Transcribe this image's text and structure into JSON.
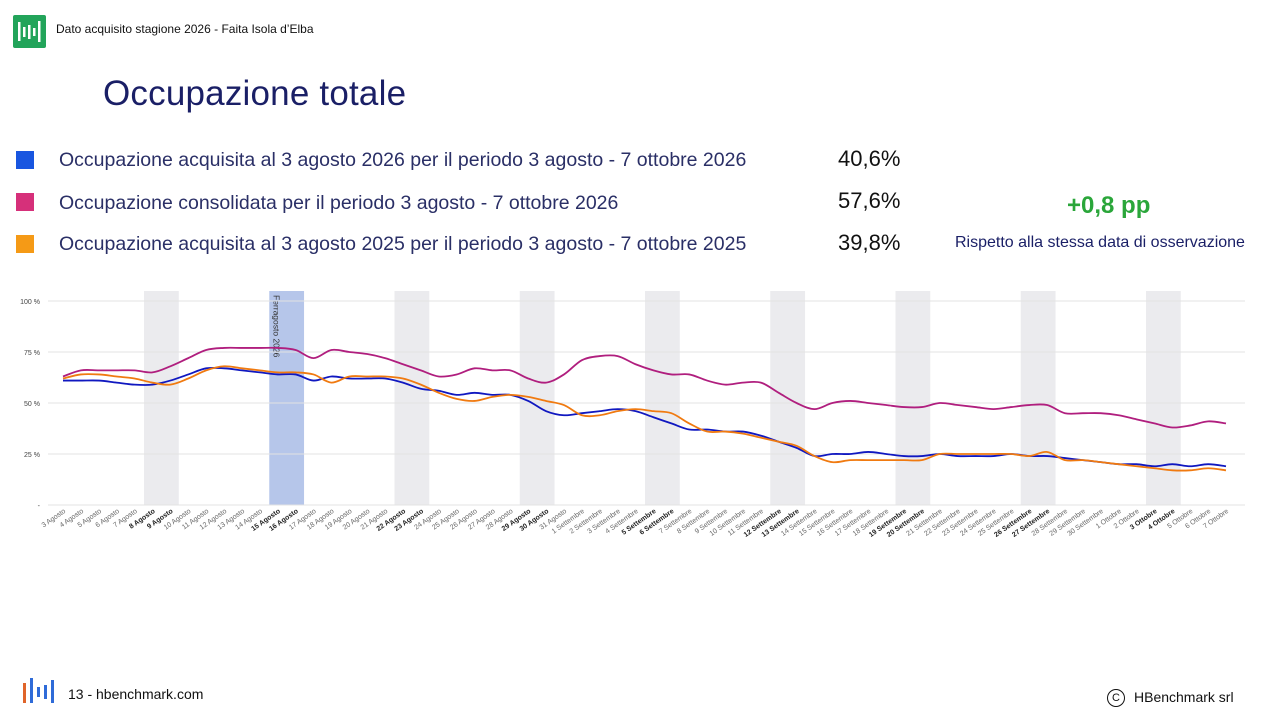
{
  "header": {
    "text": "Dato acquisito stagione 2026 - Faita Isola d’Elba"
  },
  "title": "Occupazione totale",
  "legend": [
    {
      "label": "Occupazione acquisita al 3 agosto 2026 per il periodo 3 agosto - 7 ottobre 2026",
      "value": "40,6%",
      "color": "#1956e0"
    },
    {
      "label": "Occupazione consolidata per il periodo 3 agosto - 7 ottobre 2026",
      "value": "57,6%",
      "color": "#d6307a"
    },
    {
      "label": "Occupazione acquisita al 3 agosto 2025 per il periodo 3 agosto - 7 ottobre 2025",
      "value": "39,8%",
      "color": "#f59a16"
    }
  ],
  "delta": {
    "value": "+0,8 pp",
    "note": "Rispetto alla stessa data di osservazione"
  },
  "footer": {
    "text": "13 - hbenchmark.com",
    "copyright_symbol": "C",
    "copyright": "HBenchmark srl"
  },
  "chart_data": {
    "type": "line",
    "yticks": [
      "100 %",
      "75 %",
      "50 %",
      "25 %",
      "-"
    ],
    "ylim": [
      0,
      100
    ],
    "x": [
      "3 Agosto",
      "4 Agosto",
      "5 Agosto",
      "6 Agosto",
      "7 Agosto",
      "8 Agosto",
      "9 Agosto",
      "10 Agosto",
      "11 Agosto",
      "12 Agosto",
      "13 Agosto",
      "14 Agosto",
      "15 Agosto",
      "16 Agosto",
      "17 Agosto",
      "18 Agosto",
      "19 Agosto",
      "20 Agosto",
      "21 Agosto",
      "22 Agosto",
      "23 Agosto",
      "24 Agosto",
      "25 Agosto",
      "26 Agosto",
      "27 Agosto",
      "28 Agosto",
      "29 Agosto",
      "30 Agosto",
      "31 Agosto",
      "1 Settembre",
      "2 Settembre",
      "3 Settembre",
      "4 Settembre",
      "5 Settembre",
      "6 Settembre",
      "7 Settembre",
      "8 Settembre",
      "9 Settembre",
      "10 Settembre",
      "11 Settembre",
      "12 Settembre",
      "13 Settembre",
      "14 Settembre",
      "15 Settembre",
      "16 Settembre",
      "17 Settembre",
      "18 Settembre",
      "19 Settembre",
      "20 Settembre",
      "21 Settembre",
      "22 Settembre",
      "23 Settembre",
      "24 Settembre",
      "25 Settembre",
      "26 Settembre",
      "27 Settembre",
      "28 Settembre",
      "29 Settembre",
      "30 Settembre",
      "1 Ottobre",
      "2 Ottobre",
      "3 Ottobre",
      "4 Ottobre",
      "5 Ottobre",
      "6 Ottobre",
      "7 Ottobre"
    ],
    "bold_x": [
      "8 Agosto",
      "9 Agosto",
      "15 Agosto",
      "16 Agosto",
      "22 Agosto",
      "23 Agosto",
      "29 Agosto",
      "30 Agosto",
      "5 Settembre",
      "6 Settembre",
      "12 Settembre",
      "13 Settembre",
      "19 Settembre",
      "20 Settembre",
      "26 Settembre",
      "27 Settembre",
      "3 Ottobre",
      "4 Ottobre"
    ],
    "weekend_bands": [
      [
        5,
        6
      ],
      [
        19,
        20
      ],
      [
        26,
        27
      ],
      [
        33,
        34
      ],
      [
        40,
        41
      ],
      [
        47,
        48
      ],
      [
        54,
        55
      ],
      [
        61,
        62
      ]
    ],
    "highlight_band": {
      "range": [
        12,
        13
      ],
      "label": "Ferragosto 2026",
      "color": "#b6c6ea"
    },
    "series": [
      {
        "color": "#1018c0",
        "values": [
          61,
          61,
          61,
          60,
          59,
          59,
          61,
          64,
          67,
          67,
          66,
          65,
          64,
          64,
          61,
          63,
          62,
          62,
          62,
          60,
          57,
          56,
          54,
          55,
          54,
          54,
          51,
          46,
          44,
          45,
          46,
          47,
          46,
          43,
          40,
          37,
          37,
          36,
          36,
          34,
          31,
          28,
          24,
          25,
          25,
          26,
          25,
          24,
          24,
          25,
          24,
          24,
          24,
          25,
          24,
          24,
          23,
          22,
          21,
          20,
          20,
          19,
          20,
          19,
          20,
          19
        ]
      },
      {
        "color": "#b01e7e",
        "values": [
          63,
          66,
          66,
          66,
          66,
          65,
          68,
          72,
          76,
          77,
          77,
          77,
          77,
          76,
          72,
          76,
          75,
          74,
          72,
          69,
          66,
          63,
          64,
          67,
          66,
          66,
          62,
          60,
          64,
          71,
          73,
          73,
          69,
          66,
          64,
          64,
          61,
          59,
          60,
          60,
          55,
          50,
          47,
          50,
          51,
          50,
          49,
          48,
          48,
          50,
          49,
          48,
          47,
          48,
          49,
          49,
          45,
          45,
          45,
          44,
          42,
          40,
          38,
          39,
          41,
          40
        ]
      },
      {
        "color": "#f07a10",
        "values": [
          62,
          64,
          64,
          63,
          62,
          60,
          59,
          62,
          66,
          68,
          67,
          66,
          65,
          65,
          64,
          60,
          63,
          63,
          63,
          62,
          59,
          55,
          52,
          51,
          53,
          54,
          53,
          51,
          49,
          44,
          44,
          46,
          47,
          46,
          45,
          40,
          36,
          36,
          35,
          33,
          31,
          29,
          24,
          21,
          22,
          22,
          22,
          22,
          22,
          25,
          25,
          25,
          25,
          25,
          24,
          26,
          22,
          22,
          21,
          20,
          19,
          18,
          17,
          17,
          18,
          17
        ]
      }
    ]
  }
}
